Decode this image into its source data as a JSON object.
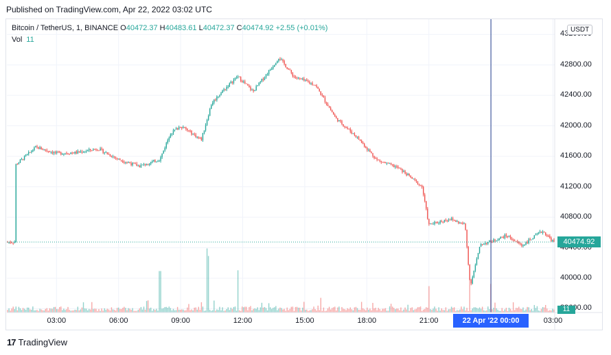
{
  "published": "Published on TradingView.com, Apr 22, 2022 03:02 UTC",
  "legend": {
    "symbol": "Bitcoin / TetherUS, 1, BINANCE",
    "o_label": "O",
    "o": "40472.37",
    "h_label": "H",
    "h": "40483.61",
    "l_label": "L",
    "l": "40472.37",
    "c_label": "C",
    "c": "40474.92",
    "change": "+2.55 (+0.01%)",
    "vol_label": "Vol",
    "vol": "11"
  },
  "currency_button": "USDT",
  "last_price_tag": "40474.92",
  "volume_tag": "11",
  "crosshair_label": "22 Apr '22   00:00",
  "brand": "TradingView",
  "brand_logo_text": "17",
  "colors": {
    "up": "#26a69a",
    "down": "#ef5350",
    "crosshair": "#2962ff",
    "grid": "#f0f3fa"
  },
  "chart_data": {
    "type": "candlestick",
    "symbol": "Bitcoin / TetherUS",
    "interval": "1",
    "exchange": "BINANCE",
    "y_ticks": [
      "43200.00",
      "42800.00",
      "42400.00",
      "42000.00",
      "41600.00",
      "41200.00",
      "40800.00",
      "40400.00",
      "40000.00",
      "39600.00"
    ],
    "x_ticks": [
      "03:00",
      "06:00",
      "09:00",
      "12:00",
      "15:00",
      "18:00",
      "21:00",
      "03:00"
    ],
    "ylim": [
      39550,
      43400
    ],
    "last_price": 40474.92,
    "price_path": [
      {
        "t": "01:00",
        "p": 41480
      },
      {
        "t": "02:00",
        "p": 41720
      },
      {
        "t": "03:00",
        "p": 41640
      },
      {
        "t": "04:00",
        "p": 41650
      },
      {
        "t": "05:00",
        "p": 41700
      },
      {
        "t": "06:00",
        "p": 41560
      },
      {
        "t": "07:00",
        "p": 41470
      },
      {
        "t": "08:00",
        "p": 41560
      },
      {
        "t": "08:30",
        "p": 41900
      },
      {
        "t": "09:00",
        "p": 42000
      },
      {
        "t": "10:00",
        "p": 41820
      },
      {
        "t": "10:30",
        "p": 42300
      },
      {
        "t": "11:00",
        "p": 42450
      },
      {
        "t": "11:45",
        "p": 42650
      },
      {
        "t": "12:30",
        "p": 42450
      },
      {
        "t": "13:30",
        "p": 42800
      },
      {
        "t": "13:45",
        "p": 42900
      },
      {
        "t": "14:30",
        "p": 42640
      },
      {
        "t": "15:30",
        "p": 42540
      },
      {
        "t": "16:30",
        "p": 42100
      },
      {
        "t": "17:30",
        "p": 41860
      },
      {
        "t": "18:30",
        "p": 41550
      },
      {
        "t": "19:30",
        "p": 41450
      },
      {
        "t": "20:00",
        "p": 41350
      },
      {
        "t": "20:40",
        "p": 41200
      },
      {
        "t": "21:00",
        "p": 40700
      },
      {
        "t": "22:00",
        "p": 40780
      },
      {
        "t": "22:45",
        "p": 40700
      },
      {
        "t": "23:00",
        "p": 39900
      },
      {
        "t": "23:30",
        "p": 40450
      },
      {
        "t": "00:00",
        "p": 40480
      },
      {
        "t": "00:45",
        "p": 40560
      },
      {
        "t": "01:30",
        "p": 40430
      },
      {
        "t": "02:30",
        "p": 40620
      },
      {
        "t": "03:02",
        "p": 40474.92
      }
    ],
    "volume_spikes": [
      {
        "t": "08:00",
        "v": 0.55
      },
      {
        "t": "10:15",
        "v": 0.85
      },
      {
        "t": "10:20",
        "v": 0.75
      },
      {
        "t": "11:45",
        "v": 0.56
      },
      {
        "t": "21:00",
        "v": 0.35
      },
      {
        "t": "23:00",
        "v": 0.45
      },
      {
        "t": "00:00",
        "v": 0.38
      }
    ]
  }
}
